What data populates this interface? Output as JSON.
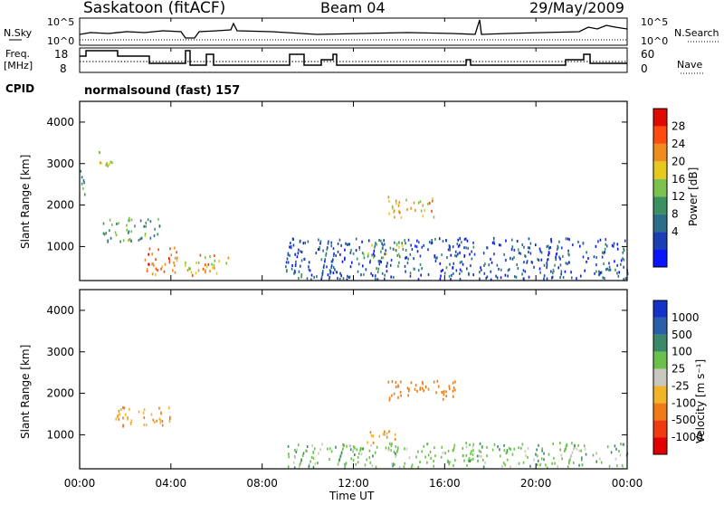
{
  "header": {
    "site": "Saskatoon (fitACF)",
    "beam": "Beam 04",
    "date": "29/May/2009"
  },
  "top_panels": {
    "nsky_label": "N.Sky",
    "nsearch_label": "N.Search",
    "nsky_ticks": [
      "10^5",
      "10^0"
    ],
    "nsearch_ticks": [
      "10^5",
      "10^0"
    ],
    "freq_label_1": "Freq.",
    "freq_label_2": "[MHz]",
    "freq_ticks": [
      "18",
      "8"
    ],
    "nave_label": "Nave",
    "nave_ticks": [
      "60",
      "0"
    ],
    "cpid_label": "CPID",
    "cpid_value": "normalsound (fast) 157"
  },
  "panels": {
    "ylabel": "Slant Range [km]",
    "yticks": [
      "4000",
      "3000",
      "2000",
      "1000"
    ],
    "xticks": [
      "00:00",
      "04:00",
      "08:00",
      "12:00",
      "16:00",
      "20:00",
      "00:00"
    ],
    "xlabel": "Time UT"
  },
  "power_scale": {
    "label": "Power [dB]",
    "ticks": [
      "28",
      "24",
      "20",
      "16",
      "12",
      "8",
      "4"
    ],
    "colors": [
      "#0a14ff",
      "#1a3fb5",
      "#2a6e8a",
      "#3a9060",
      "#7bc24a",
      "#e6c81e",
      "#f08c1e",
      "#ff4a10",
      "#e00a00"
    ]
  },
  "velocity_scale": {
    "label": "Velocity [m s⁻¹]",
    "ticks": [
      "1000",
      "500",
      "100",
      "25",
      "-25",
      "-100",
      "-500",
      "-1000"
    ],
    "colors": [
      "#1232c8",
      "#2a5ea8",
      "#3a8a6a",
      "#6ac04a",
      "#c8c8c0",
      "#f0b428",
      "#f07a18",
      "#f03a10",
      "#e00000"
    ]
  },
  "chart_data": {
    "type": "heatmap",
    "title": "Saskatoon (fitACF) Beam 04 29/May/2009",
    "xlabel": "Time UT",
    "ylabel": "Slant Range [km]",
    "xlim_hours": [
      0,
      24
    ],
    "ylim_km": [
      180,
      4500
    ],
    "data_gap_hours": [
      6.8,
      9.0
    ],
    "power_clusters_db": [
      {
        "t": [
          0.0,
          0.3
        ],
        "range_km": [
          2200,
          2900
        ],
        "db": 14
      },
      {
        "t": [
          0.8,
          1.4
        ],
        "range_km": [
          2800,
          3300
        ],
        "db": 20
      },
      {
        "t": [
          1.0,
          3.5
        ],
        "range_km": [
          1100,
          1700
        ],
        "db": 14
      },
      {
        "t": [
          2.8,
          4.3
        ],
        "range_km": [
          300,
          1000
        ],
        "db": 26
      },
      {
        "t": [
          4.6,
          6.5
        ],
        "range_km": [
          300,
          800
        ],
        "db": 22
      },
      {
        "t": [
          13.5,
          15.5
        ],
        "range_km": [
          1700,
          2200
        ],
        "db": 22
      },
      {
        "t": [
          12.0,
          14.5
        ],
        "range_km": [
          700,
          1100
        ],
        "db": 16
      },
      {
        "t": [
          9.0,
          24.0
        ],
        "range_km": [
          200,
          1200
        ],
        "db": 8
      }
    ],
    "velocity_clusters_ms": [
      {
        "t": [
          13.5,
          16.5
        ],
        "range_km": [
          1800,
          2300
        ],
        "v": -300
      },
      {
        "t": [
          12.5,
          14.0
        ],
        "range_km": [
          800,
          1100
        ],
        "v": -100
      },
      {
        "t": [
          1.5,
          4.0
        ],
        "range_km": [
          1200,
          1700
        ],
        "v": -100
      },
      {
        "t": [
          9.0,
          24.0
        ],
        "range_km": [
          200,
          800
        ],
        "v": 60
      }
    ]
  }
}
